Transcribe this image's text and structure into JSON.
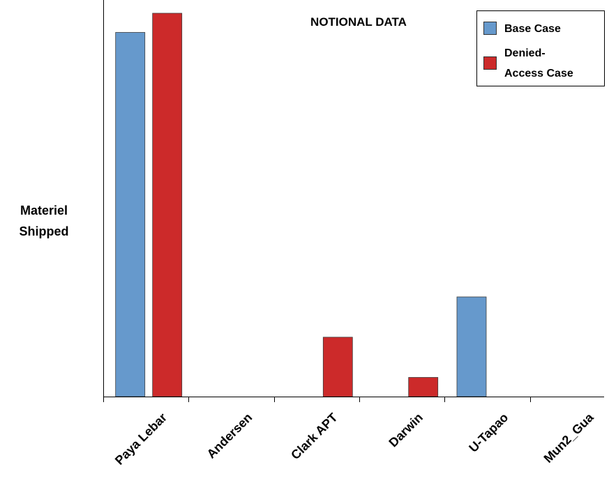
{
  "chart_data": {
    "type": "bar",
    "title": "NOTIONAL DATA",
    "xlabel": "",
    "ylabel": [
      "Materiel",
      "Shipped"
    ],
    "categories": [
      "Paya Lebar",
      "Andersen",
      "Clark APT",
      "Darwin",
      "U-Tapao",
      "Mun2_Gua"
    ],
    "series": [
      {
        "name": "Base Case",
        "color": "#6699cc",
        "values": [
          95,
          0,
          0,
          0,
          26,
          0
        ]
      },
      {
        "name": "Denied-Access Case",
        "color": "#cc2a2a",
        "values": [
          100,
          0,
          15.5,
          5,
          0,
          0
        ]
      }
    ],
    "ylim": [
      0,
      103
    ],
    "yticks": "none",
    "grid": false,
    "legend": {
      "position": "top-right",
      "entries": [
        [
          "Base Case"
        ],
        [
          "Denied-",
          "Access Case"
        ]
      ]
    }
  }
}
